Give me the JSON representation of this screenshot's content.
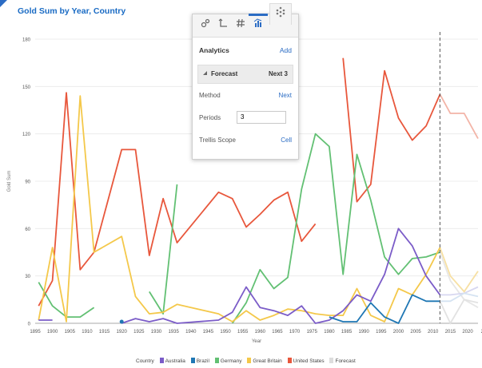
{
  "title": "Gold Sum by Year, Country",
  "popup": {
    "tabs": [
      "settings-tab",
      "axis-tab",
      "number-format-tab",
      "analytics-tab",
      "more-tab"
    ],
    "heading": "Analytics",
    "add_label": "Add",
    "forecast_label": "Forecast",
    "forecast_value": "Next 3",
    "method_label": "Method",
    "method_value": "Next",
    "periods_label": "Periods",
    "periods_value": "3",
    "trellis_label": "Trellis Scope",
    "trellis_value": "Cell"
  },
  "legend": {
    "title": "Country",
    "items": [
      {
        "name": "Australia",
        "color": "#7b5cc8"
      },
      {
        "name": "Brazil",
        "color": "#1f77b4"
      },
      {
        "name": "Germany",
        "color": "#62c073"
      },
      {
        "name": "Great Britain",
        "color": "#f4c84a"
      },
      {
        "name": "United States",
        "color": "#e8573c"
      },
      {
        "name": "Forecast",
        "color": "#dddddd"
      }
    ]
  },
  "chart_data": {
    "type": "line",
    "title": "Gold Sum by Year, Country",
    "xlabel": "Year",
    "ylabel": "Gold Sum",
    "ylim": [
      0,
      180
    ],
    "xlim": [
      1895,
      2023
    ],
    "x_ticks": [
      "1895",
      "1900",
      "1905",
      "1910",
      "1915",
      "1920",
      "1925",
      "1930",
      "1935",
      "1940",
      "1945",
      "1950",
      "1955",
      "1960",
      "1965",
      "1970",
      "1975",
      "1980",
      "1985",
      "1990",
      "1995",
      "2000",
      "2005",
      "2010",
      "2015",
      "2020",
      "202"
    ],
    "y_ticks": [
      "0",
      "30",
      "60",
      "90",
      "120",
      "150",
      "180"
    ],
    "forecast_start": 2012,
    "series": [
      {
        "name": "United States",
        "color": "#e8573c",
        "points": [
          [
            1896,
            11
          ],
          [
            1900,
            27
          ],
          [
            1904,
            146
          ],
          [
            1908,
            34
          ],
          [
            1912,
            45
          ],
          [
            1920,
            110
          ],
          [
            1924,
            110
          ],
          [
            1928,
            43
          ],
          [
            1932,
            79
          ],
          [
            1936,
            51
          ],
          [
            1948,
            83
          ],
          [
            1952,
            79
          ],
          [
            1956,
            61
          ],
          [
            1960,
            69
          ],
          [
            1964,
            78
          ],
          [
            1968,
            83
          ],
          [
            1972,
            52
          ],
          [
            1976,
            63
          ],
          null,
          [
            1984,
            168
          ],
          [
            1988,
            77
          ],
          [
            1992,
            88
          ],
          [
            1996,
            160
          ],
          [
            2000,
            130
          ],
          [
            2004,
            116
          ],
          [
            2008,
            125
          ],
          [
            2012,
            145
          ]
        ]
      },
      {
        "name": "Germany",
        "color": "#62c073",
        "points": [
          [
            1896,
            26
          ],
          [
            1900,
            11
          ],
          [
            1904,
            4
          ],
          [
            1908,
            4
          ],
          [
            1912,
            10
          ],
          null,
          [
            1928,
            20
          ],
          [
            1932,
            6
          ],
          [
            1936,
            88
          ],
          null,
          [
            1952,
            0
          ],
          [
            1956,
            13
          ],
          [
            1960,
            34
          ],
          [
            1964,
            22
          ],
          [
            1968,
            29
          ],
          [
            1972,
            85
          ],
          [
            1976,
            120
          ],
          [
            1980,
            112
          ],
          [
            1984,
            31
          ],
          [
            1988,
            107
          ],
          [
            1992,
            78
          ],
          [
            1996,
            42
          ],
          [
            2000,
            31
          ],
          [
            2004,
            41
          ],
          [
            2008,
            42
          ],
          [
            2012,
            45
          ]
        ]
      },
      {
        "name": "Great Britain",
        "color": "#f4c84a",
        "points": [
          [
            1896,
            2
          ],
          [
            1900,
            48
          ],
          [
            1904,
            1
          ],
          [
            1908,
            144
          ],
          [
            1912,
            45
          ],
          [
            1920,
            55
          ],
          [
            1924,
            17
          ],
          [
            1928,
            6
          ],
          [
            1932,
            7
          ],
          [
            1936,
            12
          ],
          [
            1948,
            6
          ],
          [
            1952,
            1
          ],
          [
            1956,
            8
          ],
          [
            1960,
            2
          ],
          [
            1964,
            5
          ],
          [
            1968,
            9
          ],
          [
            1972,
            8
          ],
          [
            1976,
            6
          ],
          [
            1980,
            5
          ],
          [
            1984,
            5
          ],
          [
            1988,
            22
          ],
          [
            1992,
            5
          ],
          [
            1996,
            1
          ],
          [
            2000,
            22
          ],
          [
            2004,
            18
          ],
          [
            2008,
            31
          ],
          [
            2012,
            48
          ]
        ]
      },
      {
        "name": "Australia",
        "color": "#7b5cc8",
        "points": [
          [
            1896,
            2
          ],
          [
            1900,
            2
          ],
          null,
          [
            1920,
            0
          ],
          [
            1924,
            3
          ],
          [
            1928,
            1
          ],
          [
            1932,
            3
          ],
          [
            1936,
            0
          ],
          [
            1948,
            2
          ],
          [
            1952,
            7
          ],
          [
            1956,
            23
          ],
          [
            1960,
            10
          ],
          [
            1964,
            8
          ],
          [
            1968,
            5
          ],
          [
            1972,
            11
          ],
          [
            1976,
            0
          ],
          [
            1980,
            2
          ],
          [
            1984,
            8
          ],
          [
            1988,
            18
          ],
          [
            1992,
            14
          ],
          [
            1996,
            31
          ],
          [
            2000,
            60
          ],
          [
            2004,
            49
          ],
          [
            2008,
            30
          ],
          [
            2012,
            18
          ]
        ]
      },
      {
        "name": "Brazil",
        "color": "#1f77b4",
        "points": [
          [
            1920,
            1
          ],
          null,
          [
            1980,
            4
          ],
          [
            1984,
            1
          ],
          [
            1988,
            1
          ],
          [
            1992,
            13
          ],
          [
            1996,
            4
          ],
          [
            2000,
            0
          ],
          [
            2004,
            18
          ],
          [
            2008,
            14
          ],
          [
            2012,
            14
          ]
        ]
      }
    ],
    "forecast": [
      {
        "color": "#f3b4a7",
        "points": [
          [
            2012,
            145
          ],
          [
            2015,
            133
          ],
          [
            2019,
            133
          ],
          [
            2023,
            117
          ]
        ]
      },
      {
        "color": "#e6e6e6",
        "points": [
          [
            2012,
            45
          ],
          [
            2015,
            27
          ],
          [
            2019,
            15
          ],
          [
            2023,
            10
          ]
        ]
      },
      {
        "color": "#f7e0a3",
        "points": [
          [
            2012,
            48
          ],
          [
            2015,
            30
          ],
          [
            2019,
            20
          ],
          [
            2023,
            33
          ]
        ]
      },
      {
        "color": "#d7d7f0",
        "points": [
          [
            2012,
            18
          ],
          [
            2015,
            18
          ],
          [
            2019,
            19
          ],
          [
            2023,
            23
          ]
        ]
      },
      {
        "color": "#d5e3f2",
        "points": [
          [
            2012,
            14
          ],
          [
            2015,
            14
          ],
          [
            2019,
            19
          ],
          [
            2023,
            17
          ]
        ]
      },
      {
        "color": "#e2e2e2",
        "points": [
          [
            2012,
            14
          ],
          [
            2015,
            0
          ],
          [
            2019,
            15
          ],
          [
            2023,
            13
          ]
        ]
      }
    ]
  }
}
